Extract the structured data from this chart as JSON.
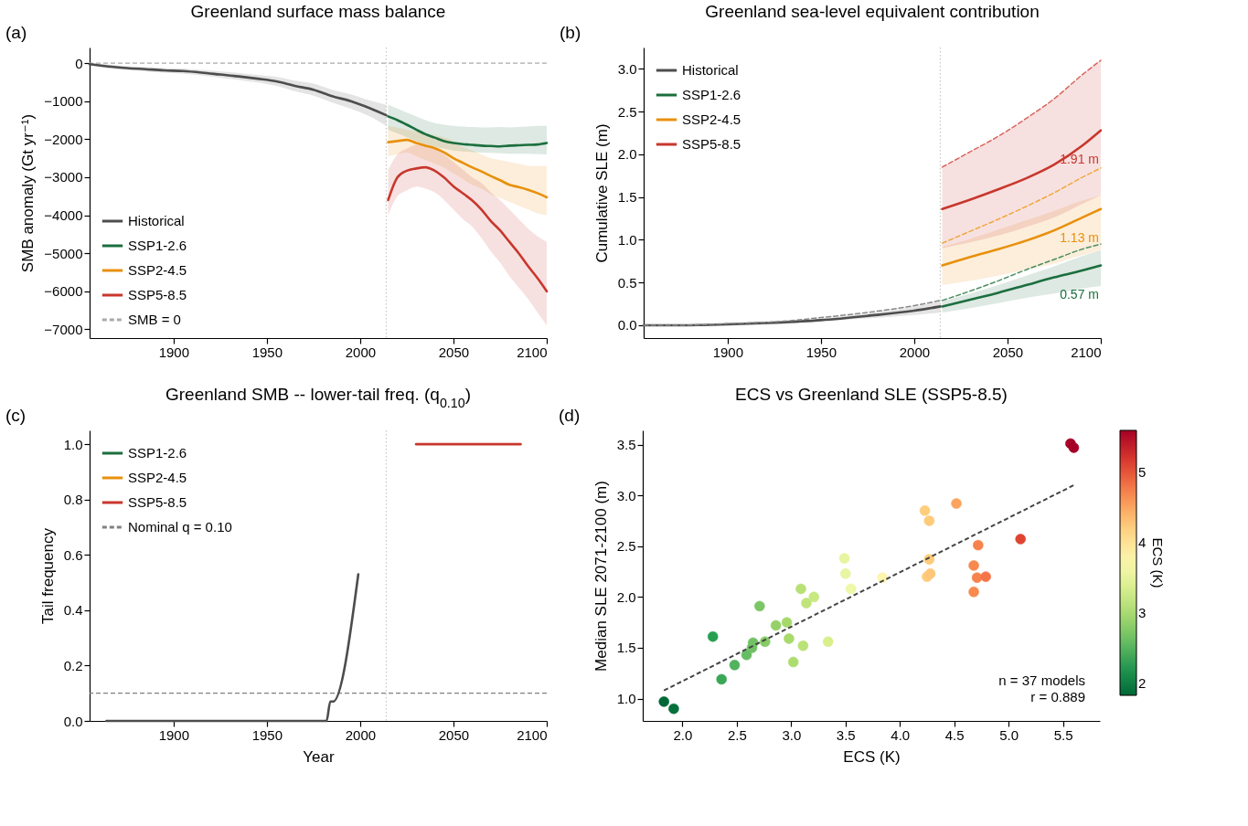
{
  "chart_data": [
    {
      "type": "line",
      "title": "Greenland surface mass balance",
      "ylabel": "SMB anomaly (Gt yr⁻¹)",
      "xlim": [
        1855,
        2100
      ],
      "xticks": [
        1900,
        1950,
        2000,
        2050,
        2100
      ],
      "ylim": [
        -7230,
        410
      ],
      "yticks": [
        -7000,
        -6000,
        -5000,
        -4000,
        -3000,
        -2000,
        -1000,
        0
      ],
      "legend": "bottom left",
      "annotations": [
        "(a)"
      ],
      "ref_lines": [
        {
          "axis": "y",
          "value": 0,
          "label": "SMB = 0",
          "color": "#aaaaaa",
          "line_style": "dashed"
        },
        {
          "axis": "x",
          "value": 2014,
          "color": "#c8c8c8",
          "line_style": "dotted"
        }
      ],
      "series": [
        {
          "name": "Historical",
          "color": "#4d4d4d",
          "x": [
            1855,
            1865,
            1875,
            1885,
            1895,
            1905,
            1915,
            1925,
            1935,
            1945,
            1955,
            1965,
            1975,
            1985,
            1995,
            2005,
            2014
          ],
          "values": [
            -30,
            -90,
            -130,
            -160,
            -190,
            -210,
            -250,
            -300,
            -350,
            -410,
            -480,
            -600,
            -700,
            -870,
            -1000,
            -1180,
            -1370
          ],
          "lower": [
            -60,
            -140,
            -180,
            -220,
            -250,
            -280,
            -320,
            -380,
            -440,
            -510,
            -600,
            -740,
            -860,
            -1040,
            -1200,
            -1400,
            -1650
          ],
          "upper": [
            0,
            -40,
            -80,
            -100,
            -130,
            -140,
            -180,
            -220,
            -260,
            -310,
            -360,
            -460,
            -540,
            -700,
            -820,
            -980,
            -1100
          ]
        },
        {
          "name": "SSP1-2.6",
          "color": "#1b6e3e",
          "x": [
            2015,
            2020,
            2025,
            2030,
            2035,
            2040,
            2045,
            2050,
            2055,
            2060,
            2065,
            2070,
            2075,
            2080,
            2085,
            2090,
            2095,
            2100
          ],
          "values": [
            -1400,
            -1500,
            -1620,
            -1750,
            -1870,
            -1960,
            -2050,
            -2100,
            -2130,
            -2150,
            -2170,
            -2180,
            -2190,
            -2170,
            -2160,
            -2150,
            -2140,
            -2100
          ],
          "lower": [
            -1750,
            -1850,
            -1950,
            -2050,
            -2150,
            -2200,
            -2250,
            -2300,
            -2320,
            -2340,
            -2350,
            -2360,
            -2370,
            -2380,
            -2380,
            -2380,
            -2390,
            -2400
          ],
          "upper": [
            -1100,
            -1200,
            -1300,
            -1400,
            -1500,
            -1580,
            -1620,
            -1650,
            -1670,
            -1680,
            -1690,
            -1690,
            -1680,
            -1690,
            -1680,
            -1670,
            -1650,
            -1650
          ]
        },
        {
          "name": "SSP2-4.5",
          "color": "#e8900c",
          "x": [
            2015,
            2020,
            2025,
            2030,
            2035,
            2040,
            2045,
            2050,
            2055,
            2060,
            2065,
            2070,
            2075,
            2080,
            2085,
            2090,
            2095,
            2100
          ],
          "values": [
            -2080,
            -2050,
            -2020,
            -2100,
            -2170,
            -2240,
            -2350,
            -2500,
            -2620,
            -2740,
            -2850,
            -2970,
            -3080,
            -3200,
            -3260,
            -3330,
            -3420,
            -3530
          ],
          "lower": [
            -2450,
            -2400,
            -2350,
            -2450,
            -2550,
            -2650,
            -2750,
            -2900,
            -3050,
            -3200,
            -3300,
            -3450,
            -3550,
            -3650,
            -3750,
            -3850,
            -3950,
            -4000
          ],
          "upper": [
            -1650,
            -1700,
            -1750,
            -1800,
            -1850,
            -1900,
            -1950,
            -2050,
            -2200,
            -2300,
            -2400,
            -2500,
            -2550,
            -2600,
            -2650,
            -2700,
            -2700,
            -2700
          ]
        },
        {
          "name": "SSP5-8.5",
          "color": "#c8372d",
          "x": [
            2015,
            2020,
            2025,
            2030,
            2035,
            2040,
            2045,
            2050,
            2055,
            2060,
            2065,
            2070,
            2075,
            2080,
            2085,
            2090,
            2095,
            2100
          ],
          "values": [
            -3600,
            -3000,
            -2830,
            -2770,
            -2740,
            -2830,
            -3010,
            -3240,
            -3420,
            -3610,
            -3850,
            -4150,
            -4400,
            -4700,
            -5000,
            -5340,
            -5650,
            -6000
          ],
          "lower": [
            -4000,
            -3500,
            -3350,
            -3250,
            -3300,
            -3400,
            -3600,
            -3850,
            -4100,
            -4300,
            -4600,
            -4950,
            -5250,
            -5600,
            -5900,
            -6200,
            -6550,
            -6900
          ],
          "upper": [
            -2800,
            -2400,
            -2250,
            -2150,
            -2150,
            -2250,
            -2400,
            -2600,
            -2800,
            -3000,
            -3150,
            -3400,
            -3600,
            -3850,
            -4100,
            -4350,
            -4550,
            -4700
          ]
        }
      ]
    },
    {
      "type": "line",
      "title": "Greenland sea-level equivalent contribution",
      "ylabel": "Cumulative SLE (m)",
      "xlim": [
        1855,
        2100
      ],
      "xticks": [
        1900,
        1950,
        2000,
        2050,
        2100
      ],
      "ylim": [
        -0.15,
        3.25
      ],
      "yticks": [
        {
          "value": 0,
          "label": "0.0"
        },
        0.5,
        {
          "value": 1,
          "label": "1.0"
        },
        1.5,
        {
          "value": 2,
          "label": "2.0"
        },
        2.5,
        {
          "value": 3,
          "label": "3.0"
        }
      ],
      "legend": "top left",
      "annotations": [
        "(b)",
        "1.91 m",
        "1.13 m",
        "0.57 m"
      ],
      "ref_lines": [
        {
          "axis": "x",
          "value": 2014,
          "color": "#c8c8c8",
          "line_style": "dotted"
        }
      ],
      "series": [
        {
          "name": "Historical",
          "color": "#4d4d4d",
          "x": [
            1855,
            1875,
            1900,
            1925,
            1950,
            1975,
            2000,
            2014
          ],
          "values": [
            0,
            0,
            0.01,
            0.03,
            0.06,
            0.11,
            0.17,
            0.22
          ],
          "lower": [
            0,
            0,
            0.01,
            0.02,
            0.05,
            0.08,
            0.12,
            0.15
          ],
          "upper": [
            0,
            0,
            0.02,
            0.04,
            0.08,
            0.14,
            0.22,
            0.28
          ]
        },
        {
          "color": "#888888",
          "line_style": "dashed",
          "x": [
            1855,
            1875,
            1900,
            1925,
            1950,
            1975,
            2000,
            2014
          ],
          "values": [
            0,
            0,
            0.02,
            0.04,
            0.09,
            0.15,
            0.23,
            0.29
          ]
        },
        {
          "name": "SSP1-2.6",
          "color": "#1b6e3e",
          "x": [
            2015,
            2030,
            2045,
            2060,
            2075,
            2090,
            2100
          ],
          "values": [
            0.22,
            0.3,
            0.38,
            0.47,
            0.56,
            0.64,
            0.7
          ],
          "lower": [
            0.15,
            0.2,
            0.26,
            0.32,
            0.37,
            0.43,
            0.46
          ],
          "upper": [
            0.28,
            0.37,
            0.47,
            0.58,
            0.69,
            0.81,
            0.88
          ]
        },
        {
          "color": "#4e8f62",
          "line_style": "dashed",
          "x": [
            2015,
            2030,
            2045,
            2060,
            2075,
            2090,
            2100
          ],
          "values": [
            0.29,
            0.4,
            0.52,
            0.65,
            0.77,
            0.89,
            0.95
          ]
        },
        {
          "name": "SSP2-4.5",
          "color": "#e8900c",
          "x": [
            2015,
            2030,
            2045,
            2060,
            2075,
            2090,
            2100
          ],
          "values": [
            0.7,
            0.8,
            0.89,
            0.99,
            1.11,
            1.26,
            1.36
          ],
          "lower": [
            0.47,
            0.52,
            0.58,
            0.65,
            0.72,
            0.82,
            0.88
          ],
          "upper": [
            0.92,
            1.01,
            1.12,
            1.23,
            1.34,
            1.46,
            1.52
          ]
        },
        {
          "color": "#f0a840",
          "line_style": "dashed",
          "x": [
            2015,
            2030,
            2045,
            2060,
            2075,
            2090,
            2100
          ],
          "values": [
            0.96,
            1.1,
            1.24,
            1.39,
            1.55,
            1.73,
            1.84
          ]
        },
        {
          "name": "SSP5-8.5",
          "color": "#c8372d",
          "x": [
            2015,
            2030,
            2045,
            2060,
            2075,
            2090,
            2100
          ],
          "values": [
            1.36,
            1.47,
            1.59,
            1.72,
            1.88,
            2.1,
            2.28
          ],
          "lower": [
            0.9,
            0.97,
            1.05,
            1.15,
            1.26,
            1.42,
            1.52
          ],
          "upper": [
            1.85,
            2.03,
            2.21,
            2.42,
            2.65,
            2.93,
            3.1
          ]
        },
        {
          "color": "#d9645c",
          "line_style": "dashed",
          "x": [
            2015,
            2030,
            2045,
            2060,
            2075,
            2090,
            2100
          ],
          "values": [
            1.85,
            2.03,
            2.21,
            2.42,
            2.65,
            2.93,
            3.1
          ]
        }
      ]
    },
    {
      "type": "line",
      "title": "Greenland SMB -- lower-tail freq. (q$_{0.10}$)",
      "xlabel": "Year",
      "ylabel": "Tail frequency",
      "xlim": [
        1855,
        2100
      ],
      "xticks": [
        1900,
        1950,
        2000,
        2050,
        2100
      ],
      "ylim": [
        0,
        1.05
      ],
      "yticks": [
        {
          "value": 0,
          "label": "0.0"
        },
        0.2,
        0.4,
        0.6,
        0.8,
        {
          "value": 1,
          "label": "1.0"
        }
      ],
      "legend": "top left",
      "annotations": [
        "(c)"
      ],
      "ref_lines": [
        {
          "axis": "y",
          "value": 0.1,
          "label": "Nominal q = 0.10",
          "color": "#808080",
          "line_style": "dashed"
        },
        {
          "axis": "x",
          "value": 2014,
          "color": "#c8c8c8",
          "line_style": "dotted"
        }
      ],
      "series": [
        {
          "color": "#4d4d4d",
          "x": [
            1864,
            1982,
            1984,
            1985.5,
            1999
          ],
          "values": [
            0,
            0,
            0.07,
            0.07,
            0.53
          ]
        },
        {
          "name": "SSP1-2.6",
          "color": "#1b6e3e"
        },
        {
          "name": "SSP2-4.5",
          "color": "#e8900c"
        },
        {
          "name": "SSP5-8.5",
          "color": "#c8372d",
          "x": [
            2030,
            2086
          ],
          "values": [
            1,
            1
          ]
        }
      ]
    },
    {
      "type": "scatter",
      "title": "ECS vs Greenland SLE (SSP5-8.5)",
      "xlabel": "ECS (K)",
      "ylabel": "Median SLE 2071-2100 (m)",
      "clabel": "ECS (K)",
      "clim": [
        1.83,
        5.6
      ],
      "cticks": [
        2,
        3,
        4,
        5
      ],
      "xlim": [
        1.635,
        5.84
      ],
      "xticks": [
        {
          "value": 2,
          "label": "2.0"
        },
        2.5,
        {
          "value": 3,
          "label": "3.0"
        },
        3.5,
        {
          "value": 4,
          "label": "4.0"
        },
        4.5,
        {
          "value": 5,
          "label": "5.0"
        },
        5.5
      ],
      "ylim": [
        0.78,
        3.64
      ],
      "yticks": [
        {
          "value": 1,
          "label": "1.0"
        },
        1.5,
        {
          "value": 2,
          "label": "2.0"
        },
        2.5,
        {
          "value": 3,
          "label": "3.0"
        },
        3.5
      ],
      "annotations": [
        "(d)",
        "n = 37 models",
        "r = 0.889"
      ],
      "series": [
        {
          "type": "scatter",
          "x": [
            1.83,
            1.92,
            2.28,
            2.36,
            2.48,
            2.59,
            2.64,
            2.65,
            2.71,
            2.76,
            2.86,
            2.96,
            2.98,
            3.02,
            3.09,
            3.11,
            3.14,
            3.21,
            3.34,
            3.49,
            3.5,
            3.55,
            3.84,
            4.23,
            4.25,
            4.27,
            4.27,
            4.28,
            4.52,
            4.68,
            4.68,
            4.71,
            4.72,
            4.79,
            5.11,
            5.57,
            5.6
          ],
          "values": [
            0.97,
            0.9,
            1.61,
            1.19,
            1.33,
            1.43,
            1.5,
            1.55,
            1.91,
            1.56,
            1.72,
            1.75,
            1.59,
            1.36,
            2.08,
            1.52,
            1.94,
            2.0,
            1.56,
            2.38,
            2.23,
            2.08,
            2.19,
            2.85,
            2.2,
            2.75,
            2.37,
            2.23,
            2.92,
            2.31,
            2.05,
            2.19,
            2.51,
            2.2,
            2.57,
            3.51,
            3.47
          ],
          "colors": [
            "#006837",
            "#06703a",
            "#279f51",
            "#39a857",
            "#51b35d",
            "#67bd63",
            "#70c164",
            "#72c264",
            "#7bc665",
            "#85cb66",
            "#95d168",
            "#a6d96a",
            "#a9da6c",
            "#aedd6f",
            "#b8e175",
            "#bae277",
            "#bfe47a",
            "#c8e881",
            "#d9ef8b",
            "#e8f5a0",
            "#e9f6a1",
            "#eef8a8",
            "#fff5ae",
            "#fece7c",
            "#fecc7a",
            "#fecb79",
            "#fecb79",
            "#fec778",
            "#fca45d",
            "#f8894f",
            "#f8894f",
            "#f7844d",
            "#f7824c",
            "#f5744a",
            "#df4431",
            "#a80528",
            "#a50026"
          ],
          "cvalues": [
            1.83,
            1.92,
            2.28,
            2.36,
            2.48,
            2.59,
            2.64,
            2.65,
            2.71,
            2.76,
            2.86,
            2.96,
            2.98,
            3.02,
            3.09,
            3.11,
            3.14,
            3.21,
            3.34,
            3.49,
            3.5,
            3.55,
            3.84,
            4.23,
            4.25,
            4.27,
            4.27,
            4.28,
            4.52,
            4.68,
            4.68,
            4.71,
            4.72,
            4.79,
            5.11,
            5.57,
            5.6
          ]
        },
        {
          "type": "line",
          "color": "#444444",
          "line_style": "dashed",
          "x": [
            1.83,
            5.6
          ],
          "values": [
            1.08,
            3.1
          ]
        }
      ]
    }
  ]
}
